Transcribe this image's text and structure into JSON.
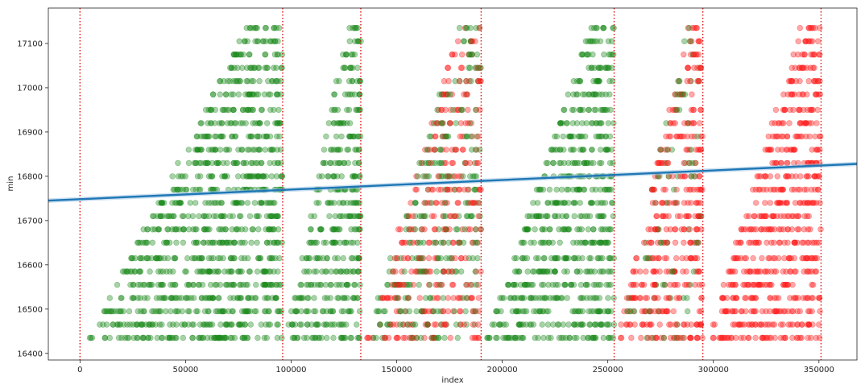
{
  "chart_data": {
    "type": "scatter",
    "title": "",
    "xlabel": "index",
    "ylabel": "min",
    "xlim": [
      -15000,
      368000
    ],
    "ylim": [
      16385,
      17180
    ],
    "x_ticks": [
      0,
      50000,
      100000,
      150000,
      200000,
      250000,
      300000,
      350000
    ],
    "x_tick_labels": [
      "0",
      "50000",
      "100000",
      "150000",
      "200000",
      "250000",
      "300000",
      "350000"
    ],
    "y_ticks": [
      16400,
      16500,
      16600,
      16700,
      16800,
      16900,
      17000,
      17100
    ],
    "y_tick_labels": [
      "16400",
      "16500",
      "16600",
      "16700",
      "16800",
      "16900",
      "17000",
      "17100"
    ],
    "grid": false,
    "legend": "none",
    "colors": {
      "green_points": "#1a8a1a",
      "red_points": "#ff1a1a",
      "regression_line": "#1f77b4",
      "confidence_band": "#9ec7e8",
      "segment_lines": "#e01010"
    },
    "segment_boundaries": [
      0,
      96000,
      133000,
      190000,
      253000,
      295000,
      351000
    ],
    "segments": [
      {
        "start": 0,
        "end": 96000,
        "y_min": 16435,
        "y_max": 17135,
        "red_share": 0.0
      },
      {
        "start": 96000,
        "end": 133000,
        "y_min": 16435,
        "y_max": 17135,
        "red_share": 0.0
      },
      {
        "start": 133000,
        "end": 190000,
        "y_min": 16435,
        "y_max": 17135,
        "red_share": 0.55
      },
      {
        "start": 190000,
        "end": 253000,
        "y_min": 16435,
        "y_max": 17135,
        "red_share": 0.0
      },
      {
        "start": 253000,
        "end": 295000,
        "y_min": 16435,
        "y_max": 17135,
        "red_share": 0.85
      },
      {
        "start": 295000,
        "end": 351000,
        "y_min": 16435,
        "y_max": 17135,
        "red_share": 1.0
      }
    ],
    "y_levels": [
      16435,
      16465,
      16495,
      16525,
      16555,
      16585,
      16615,
      16650,
      16680,
      16710,
      16740,
      16770,
      16800,
      16830,
      16860,
      16890,
      16920,
      16950,
      16985,
      17015,
      17045,
      17075,
      17105,
      17135
    ],
    "regression": {
      "x": [
        -15000,
        368000
      ],
      "y": [
        16745,
        16828
      ],
      "band_halfwidth": 5
    }
  }
}
